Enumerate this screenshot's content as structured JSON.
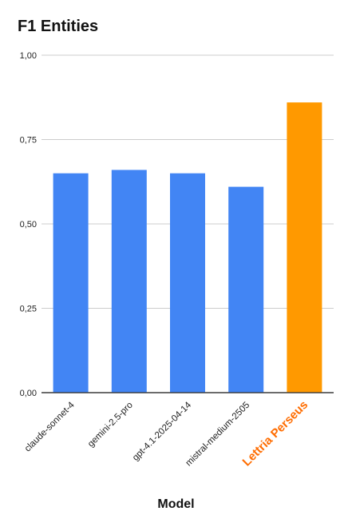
{
  "chart_data": {
    "type": "bar",
    "title": "F1 Entities",
    "xlabel": "Model",
    "ylabel": "",
    "ylim": [
      0,
      1
    ],
    "yticks": [
      0,
      0.25,
      0.5,
      0.75,
      1
    ],
    "ytick_labels": [
      "0,00",
      "0,25",
      "0,50",
      "0,75",
      "1,00"
    ],
    "grid": true,
    "legend": "none",
    "categories": [
      "claude-sonnet-4",
      "gemini-2.5-pro",
      "gpt-4.1-2025-04-14",
      "mistral-medium-2505",
      "Lettria Perseus"
    ],
    "values": [
      0.65,
      0.66,
      0.65,
      0.61,
      0.86
    ],
    "colors": [
      "#4285f4",
      "#4285f4",
      "#4285f4",
      "#4285f4",
      "#ff9900"
    ],
    "highlight_label_color": "#ff6d01",
    "label_color": "#222222",
    "grid_color": "#cccccc",
    "axis_color": "#333333"
  }
}
